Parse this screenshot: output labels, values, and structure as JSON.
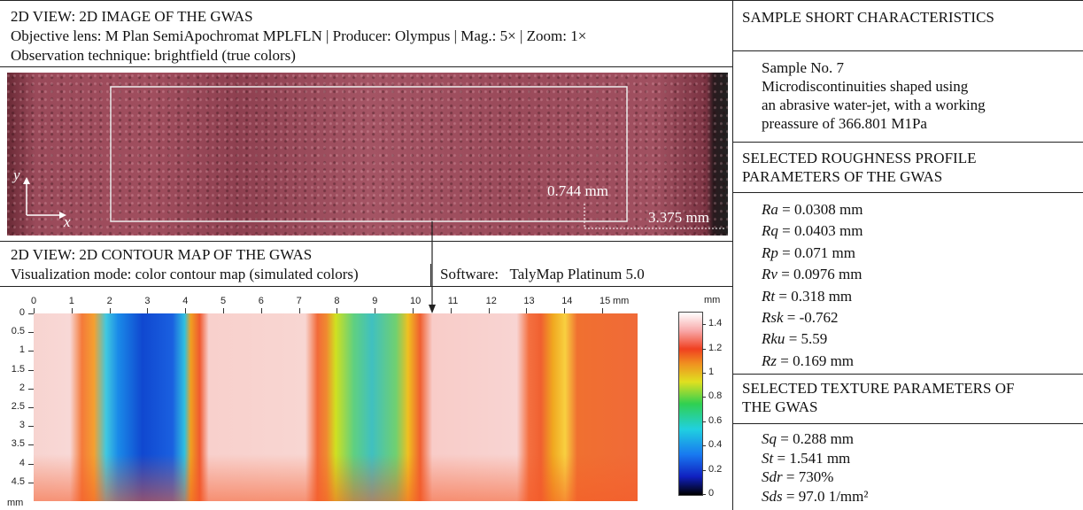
{
  "left": {
    "image_panel": {
      "title": "2D VIEW: 2D IMAGE OF THE GWAS",
      "lines": [
        "Objective lens: M Plan SemiApochromat MPLFLN | Producer: Olympus | Mag.: 5× | Zoom: 1×",
        "Observation technique: brightfield (true colors)"
      ],
      "axis_y": "y",
      "axis_x": "x",
      "height_label": "0.744 mm",
      "width_label": "3.375 mm"
    },
    "contour_panel": {
      "title": "2D VIEW: 2D CONTOUR MAP OF THE GWAS",
      "mode": "Visualization mode: color contour map (simulated colors)",
      "software": "Software:   TalyMap Platinum 5.0",
      "x_ticks": [
        0,
        1,
        2,
        3,
        4,
        5,
        6,
        7,
        8,
        9,
        10,
        11,
        12,
        13,
        14,
        15
      ],
      "x_unit": "mm",
      "y_ticks": [
        0,
        0.5,
        1,
        1.5,
        2,
        2.5,
        3,
        3.5,
        4,
        4.5
      ],
      "y_unit": "mm",
      "colorbar_ticks": [
        0,
        0.2,
        0.4,
        0.6,
        0.8,
        1,
        1.2,
        1.4
      ],
      "colorbar_unit": "mm"
    }
  },
  "right": {
    "sample": {
      "title": "SAMPLE SHORT CHARACTERISTICS",
      "lines": [
        "Sample No. 7",
        "Microdiscontinuities shaped using",
        "an abrasive water-jet, with a working",
        "preassure of 366.801 M1Pa"
      ]
    },
    "profile": {
      "title": "SELECTED ROUGHNESS PROFILE PARAMETERS OF THE GWAS",
      "params": [
        {
          "symbol": "Ra",
          "value": " = 0.0308 mm"
        },
        {
          "symbol": "Rq",
          "value": " = 0.0403 mm"
        },
        {
          "symbol": "Rp",
          "value": " = 0.071 mm"
        },
        {
          "symbol": "Rv",
          "value": " = 0.0976 mm"
        },
        {
          "symbol": "Rt",
          "value": " = 0.318 mm"
        },
        {
          "symbol": "Rsk",
          "value": " = -0.762"
        },
        {
          "symbol": "Rku",
          "value": " = 5.59"
        },
        {
          "symbol": "Rz",
          "value": " = 0.169 mm"
        }
      ]
    },
    "texture": {
      "title": "SELECTED TEXTURE PARAMETERS OF THE GWAS",
      "params": [
        {
          "symbol": "Sq",
          "value": " = 0.288 mm"
        },
        {
          "symbol": "St",
          "value": " = 1.541 mm"
        },
        {
          "symbol": "Sdr",
          "value": " = 730%"
        },
        {
          "symbol": "Sds",
          "value": " = 97.0 1/mm²"
        }
      ]
    }
  }
}
